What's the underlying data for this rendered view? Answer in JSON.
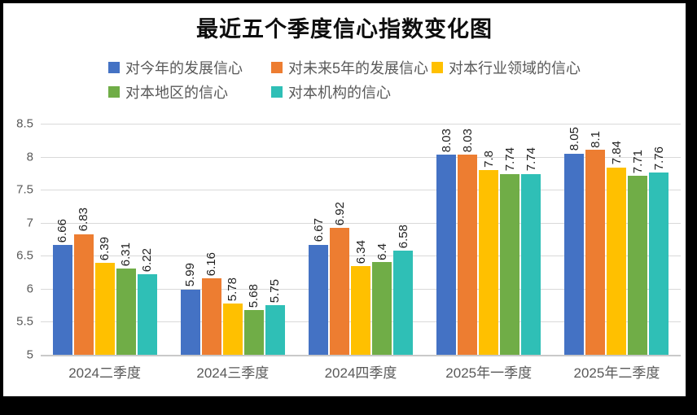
{
  "page": {
    "border_color": "#000000",
    "canvas_background": "#ffffff"
  },
  "chart_data": {
    "type": "bar",
    "title": "最近五个季度信心指数变化图",
    "categories": [
      "2024二季度",
      "2024三季度",
      "2024四季度",
      "2025年一季度",
      "2025年二季度"
    ],
    "series": [
      {
        "name": "对今年的发展信心",
        "color": "#4472C4",
        "values": [
          6.66,
          5.99,
          6.67,
          8.03,
          8.05
        ]
      },
      {
        "name": "对未来5年的发展信心",
        "color": "#ED7D31",
        "values": [
          6.83,
          6.16,
          6.92,
          8.03,
          8.1
        ]
      },
      {
        "name": "对本行业领域的信心",
        "color": "#FFC000",
        "values": [
          6.39,
          5.78,
          6.34,
          7.8,
          7.84
        ]
      },
      {
        "name": "对本地区的信心",
        "color": "#70AD47",
        "values": [
          6.31,
          5.68,
          6.4,
          7.74,
          7.71
        ]
      },
      {
        "name": "对本机构的信心",
        "color": "#2FBFB6",
        "values": [
          6.22,
          5.75,
          6.58,
          7.74,
          7.76
        ]
      }
    ],
    "ylim": [
      5,
      8.5
    ],
    "y_ticks": [
      5,
      5.5,
      6,
      6.5,
      7,
      7.5,
      8,
      8.5
    ],
    "grid": true,
    "gridline_color": "#d9d9d9",
    "axis_text_color": "#595959",
    "data_label_color": "#1f1f1f",
    "data_labels_rotated": true,
    "legend_position": "top",
    "legend_rows": [
      [
        0,
        1,
        2
      ],
      [
        3,
        4
      ]
    ]
  }
}
